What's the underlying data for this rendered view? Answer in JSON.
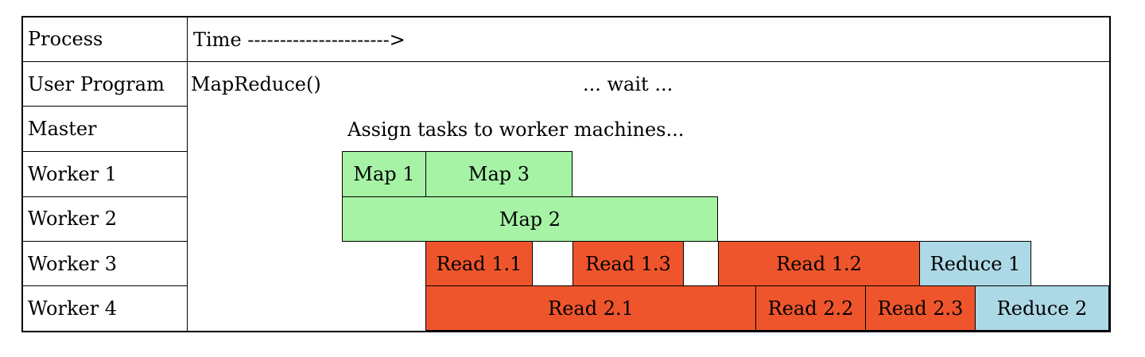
{
  "header": {
    "process_label": "Process",
    "time_label": "Time ---------------------->"
  },
  "rows": [
    {
      "label": "User Program"
    },
    {
      "label": "Master"
    },
    {
      "label": "Worker 1"
    },
    {
      "label": "Worker 2"
    },
    {
      "label": "Worker 3"
    },
    {
      "label": "Worker 4"
    }
  ],
  "user_program": {
    "call": "MapReduce()",
    "wait": "... wait ..."
  },
  "master": {
    "assign": "Assign tasks to worker machines..."
  },
  "tasks": {
    "map1": "Map 1",
    "map3": "Map 3",
    "map2": "Map 2",
    "read11": "Read 1.1",
    "read13": "Read 1.3",
    "read12": "Read 1.2",
    "reduce1": "Reduce 1",
    "read21": "Read 2.1",
    "read22": "Read 2.2",
    "read23": "Read 2.3",
    "reduce2": "Reduce 2"
  },
  "colors": {
    "map": "#a6f3a6",
    "read": "#ef552c",
    "reduce": "#add8e6"
  }
}
